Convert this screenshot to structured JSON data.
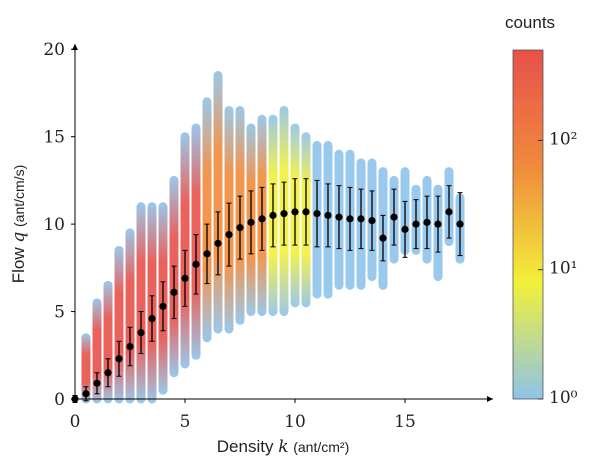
{
  "chart_data": {
    "type": "scatter",
    "x_label": {
      "word": "Density",
      "symbol": "k",
      "unit": "(ant/cm²)"
    },
    "y_label": {
      "word": "Flow",
      "symbol": "q",
      "unit": "(ant/cm/s)"
    },
    "xlim": [
      0,
      19
    ],
    "ylim": [
      0,
      20.3
    ],
    "xticks": [
      0,
      5,
      10,
      15
    ],
    "yticks": [
      0,
      5,
      10,
      15,
      20
    ],
    "cloud": {
      "color": "#8ec3ea",
      "x": [
        0.5,
        1,
        1.5,
        2,
        2.5,
        3,
        3.5,
        4,
        4.5,
        5,
        5.5,
        6,
        6.5,
        7,
        7.5,
        8,
        8.5,
        9,
        9.5,
        10,
        10.5,
        11,
        11.5,
        12,
        12.5,
        13,
        13.5,
        14,
        14.5,
        15,
        15.5,
        16,
        16.5,
        17,
        17.5
      ],
      "low": [
        0,
        0,
        0,
        0,
        0,
        0,
        0,
        0.5,
        1.5,
        2,
        2.5,
        3.5,
        4,
        4,
        4.5,
        5,
        5,
        5,
        5,
        5.5,
        5.5,
        6,
        6,
        6.5,
        6.5,
        6.5,
        7,
        6.5,
        8,
        8.5,
        8.5,
        8,
        7,
        9,
        8
      ],
      "high": [
        3.5,
        5.5,
        6.5,
        8.5,
        9.5,
        11,
        11,
        11,
        12.5,
        15,
        15.5,
        17,
        18.5,
        16.5,
        16.5,
        15.5,
        16,
        16,
        16.5,
        15.5,
        15,
        14.5,
        14.5,
        14,
        14,
        13.5,
        13.5,
        13,
        12.5,
        13,
        12,
        12.5,
        12,
        13,
        11.5
      ]
    },
    "mean": {
      "color": "#000000",
      "x": [
        0,
        0.5,
        1,
        1.5,
        2,
        2.5,
        3,
        3.5,
        4,
        4.5,
        5,
        5.5,
        6,
        6.5,
        7,
        7.5,
        8,
        8.5,
        9,
        9.5,
        10,
        10.5,
        11,
        11.5,
        12,
        12.5,
        13,
        13.5,
        14,
        14.5,
        15,
        15.5,
        16,
        16.5,
        17,
        17.5
      ],
      "values": [
        0,
        0.3,
        0.9,
        1.5,
        2.3,
        3.0,
        3.8,
        4.6,
        5.3,
        6.1,
        6.9,
        7.7,
        8.3,
        8.9,
        9.4,
        9.8,
        10.1,
        10.3,
        10.5,
        10.6,
        10.7,
        10.7,
        10.6,
        10.5,
        10.4,
        10.3,
        10.3,
        10.2,
        9.2,
        10.4,
        9.7,
        10.0,
        10.1,
        10.0,
        10.7,
        10.0
      ],
      "errors": [
        0.2,
        0.4,
        0.6,
        0.8,
        1.0,
        1.1,
        1.2,
        1.3,
        1.4,
        1.5,
        1.6,
        1.7,
        1.7,
        1.8,
        1.8,
        1.8,
        1.8,
        1.8,
        1.8,
        1.8,
        1.9,
        1.9,
        1.9,
        1.8,
        1.8,
        1.8,
        1.7,
        1.7,
        1.3,
        1.6,
        1.6,
        1.4,
        1.5,
        1.6,
        1.5,
        1.8
      ]
    },
    "colorbar": {
      "label": "counts",
      "log_scale": true,
      "clim": [
        1,
        500
      ],
      "colors": [
        "#8ec3ea",
        "#f2f03a",
        "#f08a3c",
        "#e8504a"
      ],
      "ticks": [
        {
          "value": 1,
          "label": "10⁰"
        },
        {
          "value": 10,
          "label": "10¹"
        },
        {
          "value": 100,
          "label": "10²"
        }
      ]
    }
  }
}
